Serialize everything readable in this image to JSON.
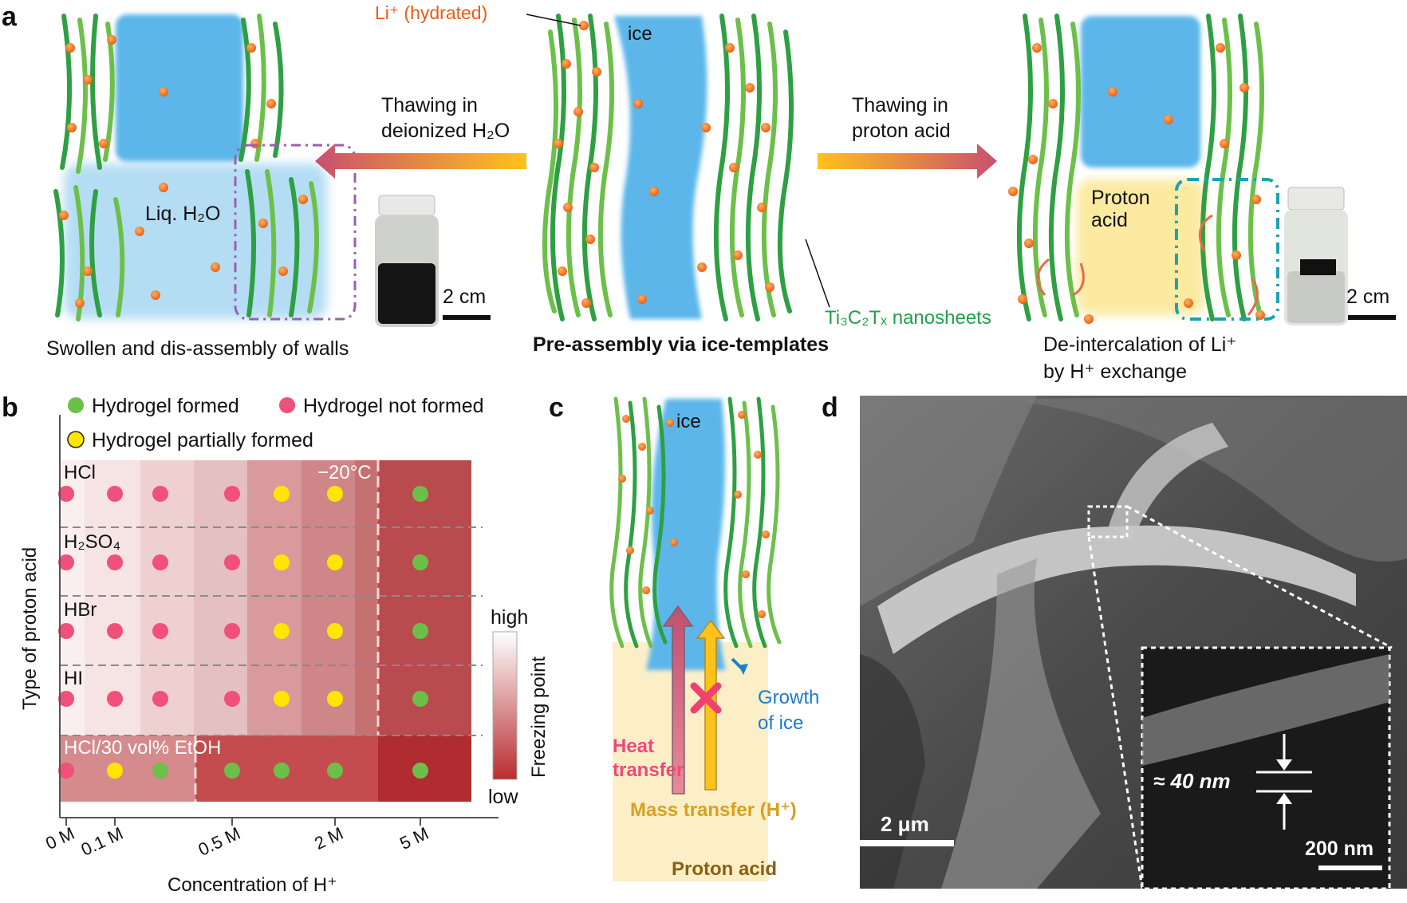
{
  "panel_a": {
    "letter": "a",
    "li_label": "Li⁺ (hydrated)",
    "ice_label": "ice",
    "left_arrow_text": [
      "Thawing in",
      "deionized H₂O"
    ],
    "right_arrow_text": [
      "Thawing in",
      "proton acid"
    ],
    "liq_label": "Liq. H₂O",
    "proton_acid_label": [
      "Proton",
      "acid"
    ],
    "scale_left": "2 cm",
    "scale_right": "2 cm",
    "nanosheet_label": "Ti₃C₂Tₓ nanosheets",
    "caption_left": "Swollen and dis-assembly of walls",
    "caption_center": "Pre-assembly via ice-templates",
    "caption_right": [
      "De-intercalation of Li⁺",
      "by H⁺ exchange"
    ]
  },
  "panel_b": {
    "letter": "b",
    "legend": {
      "formed": "Hydrogel formed",
      "not_formed": "Hydrogel not formed",
      "partial": "Hydrogel partially formed"
    },
    "temp_label": "−20°C",
    "colorbar_high": "high",
    "colorbar_low": "low",
    "colorbar_title": "Freezing point",
    "ylabel": "Type of proton acid",
    "xlabel": "Concentration of H⁺",
    "x_ticks": [
      "0 M",
      "0.1 M",
      "0.5 M",
      "2 M",
      "5 M"
    ],
    "rows": [
      {
        "name": "HCl",
        "states": [
          "n",
          "n",
          "n",
          "n",
          "p",
          "p",
          "f"
        ]
      },
      {
        "name": "H₂SO₄",
        "states": [
          "n",
          "n",
          "n",
          "n",
          "p",
          "p",
          "f"
        ]
      },
      {
        "name": "HBr",
        "states": [
          "n",
          "n",
          "n",
          "n",
          "p",
          "p",
          "f"
        ]
      },
      {
        "name": "HI",
        "states": [
          "n",
          "n",
          "n",
          "n",
          "p",
          "p",
          "f"
        ]
      },
      {
        "name": "HCl/30 vol% EtOH",
        "states": [
          "n",
          "p",
          "f",
          "f",
          "f",
          "f",
          "f"
        ]
      }
    ],
    "colors": {
      "formed": "#6cc04a",
      "not_formed": "#f0507a",
      "partial": "#ffe600"
    }
  },
  "panel_c": {
    "letter": "c",
    "ice_label": "ice",
    "growth_label": [
      "Growth",
      "of ice"
    ],
    "heat_label": [
      "Heat",
      "transfer"
    ],
    "mass_label": "Mass transfer (H⁺)",
    "acid_label": "Proton acid"
  },
  "panel_d": {
    "letter": "d",
    "scale_main": "2 μm",
    "thickness": "≈ 40 nm",
    "scale_inset": "200 nm"
  }
}
